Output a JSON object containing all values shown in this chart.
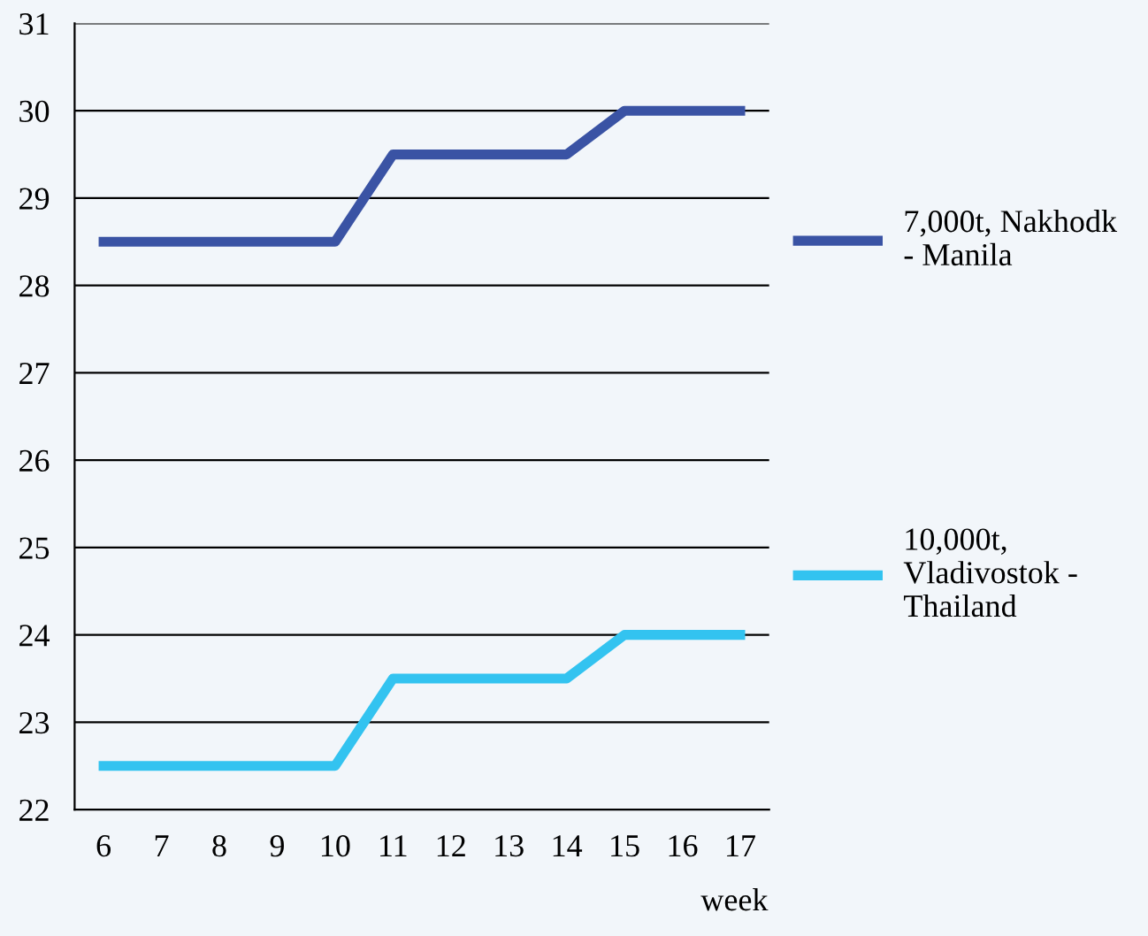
{
  "chart_data": {
    "type": "line",
    "xlabel": "week",
    "categories": [
      "6",
      "7",
      "8",
      "9",
      "10",
      "11",
      "12",
      "13",
      "14",
      "15",
      "16",
      "17"
    ],
    "series": [
      {
        "name": "7,000t, Nakhodk\n- Manila",
        "color": "#3a53a4",
        "values": [
          28.5,
          28.5,
          28.5,
          28.5,
          28.5,
          29.5,
          29.5,
          29.5,
          29.5,
          30,
          30,
          30
        ]
      },
      {
        "name": "10,000t,\nVladivostok -\nThailand",
        "color": "#33c3f0",
        "values": [
          22.5,
          22.5,
          22.5,
          22.5,
          22.5,
          23.5,
          23.5,
          23.5,
          23.5,
          24,
          24,
          24
        ]
      }
    ],
    "ylim": [
      22,
      31
    ],
    "yticks": [
      22,
      23,
      24,
      25,
      26,
      27,
      28,
      29,
      30,
      31
    ],
    "grid": "y",
    "legend": "right",
    "marker": "none",
    "line_style": "solid"
  }
}
